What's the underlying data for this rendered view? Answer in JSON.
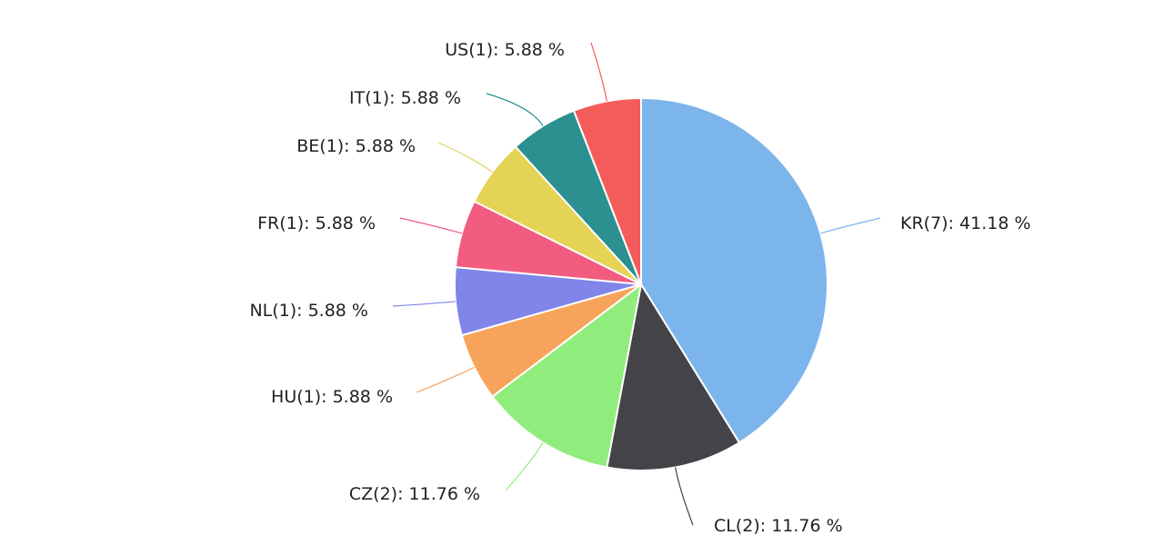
{
  "chart_data": {
    "type": "pie",
    "title": "",
    "slices": [
      {
        "name": "KR",
        "count": 7,
        "percent": 41.18,
        "label": "KR(7): 41.18 %",
        "color": "#7cb5ec"
      },
      {
        "name": "CL",
        "count": 2,
        "percent": 11.76,
        "label": "CL(2): 11.76 %",
        "color": "#434348"
      },
      {
        "name": "CZ",
        "count": 2,
        "percent": 11.76,
        "label": "CZ(2): 11.76 %",
        "color": "#90ed7d"
      },
      {
        "name": "HU",
        "count": 1,
        "percent": 5.88,
        "label": "HU(1): 5.88 %",
        "color": "#f7a35c"
      },
      {
        "name": "NL",
        "count": 1,
        "percent": 5.88,
        "label": "NL(1): 5.88 %",
        "color": "#8085e9"
      },
      {
        "name": "FR",
        "count": 1,
        "percent": 5.88,
        "label": "FR(1): 5.88 %",
        "color": "#f15c80"
      },
      {
        "name": "BE",
        "count": 1,
        "percent": 5.88,
        "label": "BE(1): 5.88 %",
        "color": "#e4d354"
      },
      {
        "name": "IT",
        "count": 1,
        "percent": 5.88,
        "label": "IT(1): 5.88 %",
        "color": "#2b908f"
      },
      {
        "name": "US",
        "count": 1,
        "percent": 5.88,
        "label": "US(1): 5.88 %",
        "color": "#f45b5b"
      }
    ],
    "start_angle": "12 o'clock",
    "direction": "clockwise",
    "legend": "none"
  }
}
